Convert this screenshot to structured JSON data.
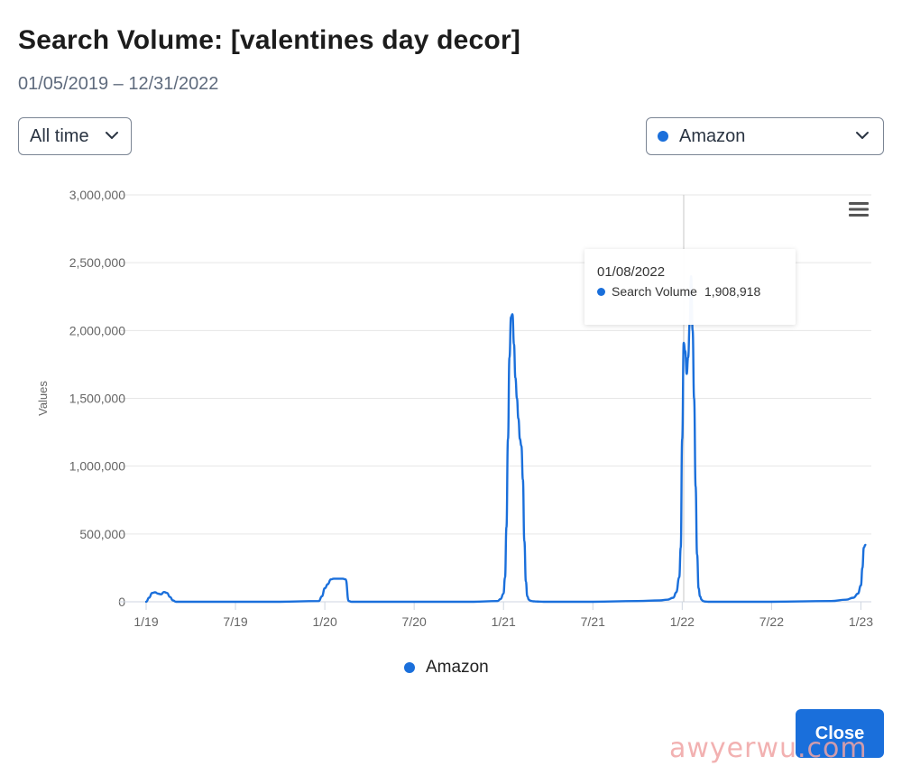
{
  "header": {
    "title": "Search Volume: [valentines day decor]",
    "date_range": "01/05/2019 – 12/31/2022"
  },
  "controls": {
    "time_range_selected": "All time",
    "source_selected": "Amazon",
    "close_label": "Close"
  },
  "colors": {
    "series": "#1a6fdb",
    "grid": "#e6e6e6",
    "axis_text": "#666666"
  },
  "tooltip": {
    "date": "01/08/2022",
    "series_label": "Search Volume",
    "value": "1,908,918"
  },
  "legend": {
    "label": "Amazon"
  },
  "watermark": "awyerwu.com",
  "chart_data": {
    "type": "line",
    "title": "Search Volume: [valentines day decor]",
    "xlabel": "",
    "ylabel": "Values",
    "ylim": [
      0,
      3000000
    ],
    "xlim": [
      0,
      48.7
    ],
    "y_ticks": [
      0,
      500000,
      1000000,
      1500000,
      2000000,
      2500000,
      3000000
    ],
    "y_tick_labels": [
      "0",
      "500,000",
      "1,000,000",
      "1,500,000",
      "2,000,000",
      "2,500,000",
      "3,000,000"
    ],
    "x_ticks": [
      0,
      6,
      12,
      18,
      24,
      30,
      36,
      42,
      48
    ],
    "x_tick_labels": [
      "1/19",
      "7/19",
      "1/20",
      "7/20",
      "1/21",
      "7/21",
      "1/22",
      "7/22",
      "1/23"
    ],
    "x_unit": "months since Jan 2019",
    "grid": true,
    "legend_position": "bottom-center",
    "crosshair_x": 36.1,
    "series": [
      {
        "name": "Amazon",
        "x": [
          0.0,
          0.2,
          0.4,
          0.6,
          0.8,
          1.0,
          1.2,
          1.4,
          1.6,
          1.8,
          2.0,
          2.2,
          2.4,
          3.0,
          6.0,
          9.0,
          11.6,
          11.8,
          12.0,
          12.2,
          12.4,
          12.6,
          12.8,
          13.0,
          13.2,
          13.4,
          13.6,
          13.8,
          14.0,
          18.0,
          22.0,
          23.6,
          23.8,
          24.0,
          24.1,
          24.2,
          24.3,
          24.4,
          24.5,
          24.6,
          24.7,
          24.8,
          24.9,
          25.0,
          25.1,
          25.2,
          25.3,
          25.4,
          25.5,
          25.6,
          25.7,
          25.8,
          25.9,
          26.0,
          26.2,
          26.4,
          26.8,
          30.0,
          33.0,
          34.5,
          35.0,
          35.4,
          35.6,
          35.8,
          35.9,
          36.0,
          36.1,
          36.2,
          36.3,
          36.4,
          36.5,
          36.6,
          36.7,
          36.8,
          36.9,
          37.0,
          37.1,
          37.2,
          37.3,
          37.4,
          37.5,
          37.6,
          37.8,
          38.0,
          38.4,
          42.0,
          46.0,
          47.0,
          47.5,
          47.8,
          48.0,
          48.1,
          48.2,
          48.3
        ],
        "y": [
          0,
          30000,
          65000,
          70000,
          60000,
          55000,
          72000,
          65000,
          35000,
          10000,
          0,
          0,
          0,
          0,
          0,
          0,
          5000,
          40000,
          100000,
          130000,
          165000,
          170000,
          170000,
          170000,
          170000,
          165000,
          5000,
          0,
          0,
          0,
          0,
          5000,
          20000,
          60000,
          180000,
          550000,
          1200000,
          1800000,
          2100000,
          2120000,
          1900000,
          1650000,
          1500000,
          1350000,
          1200000,
          1150000,
          900000,
          450000,
          150000,
          40000,
          15000,
          8000,
          5000,
          3000,
          2000,
          1000,
          0,
          0,
          5000,
          10000,
          15000,
          30000,
          70000,
          180000,
          400000,
          1200000,
          1908918,
          1850000,
          1680000,
          1800000,
          2050000,
          2400000,
          2000000,
          1500000,
          850000,
          350000,
          100000,
          40000,
          15000,
          5000,
          2000,
          1000,
          0,
          0,
          0,
          0,
          5000,
          15000,
          30000,
          60000,
          120000,
          250000,
          400000,
          420000
        ]
      }
    ]
  }
}
